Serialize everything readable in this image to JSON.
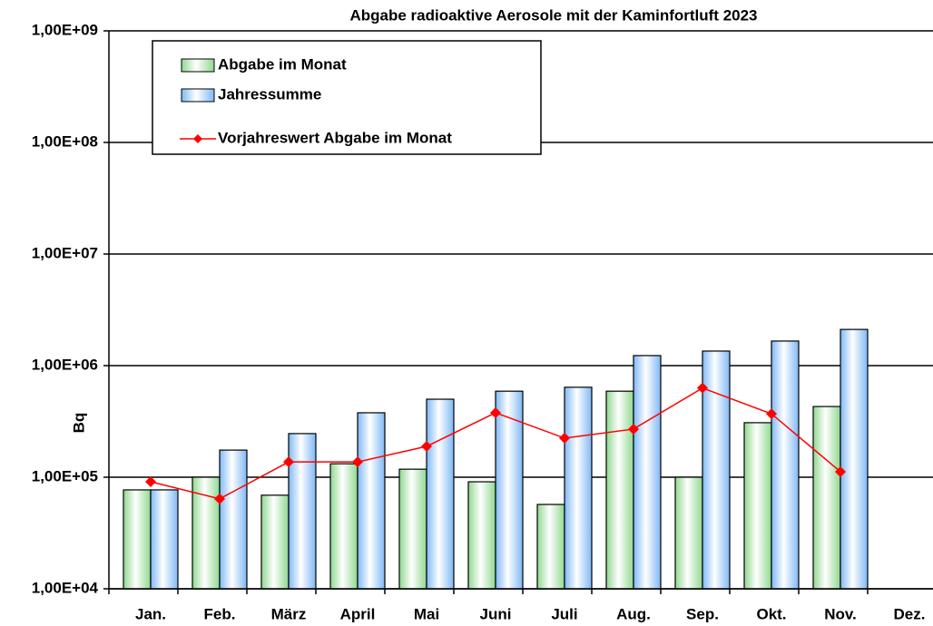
{
  "chart_data": {
    "type": "bar",
    "title": "Abgabe radioaktive Aerosole mit der Kaminfortluft 2023",
    "y_label": "Bq",
    "categories": [
      "Jan.",
      "Feb.",
      "März",
      "April",
      "Mai",
      "Juni",
      "Juli",
      "Aug.",
      "Sep.",
      "Okt.",
      "Nov.",
      "Dez."
    ],
    "series": [
      {
        "name": "Abgabe im Monat",
        "type": "bar",
        "color": "#8fd88f",
        "values": [
          77000,
          100000,
          69000,
          132000,
          118000,
          91000,
          57000,
          590000,
          100000,
          308000,
          430000,
          null
        ]
      },
      {
        "name": "Jahressumme",
        "type": "bar",
        "color": "#7fb8f5",
        "values": [
          77000,
          175000,
          246000,
          378000,
          500000,
          590000,
          640000,
          1230000,
          1350000,
          1660000,
          2110000,
          null
        ]
      },
      {
        "name": "Vorjahreswert Abgabe im Monat",
        "type": "line",
        "color": "#ff0000",
        "values": [
          91000,
          64000,
          137000,
          137000,
          189000,
          378000,
          224000,
          270000,
          630000,
          370000,
          112000,
          null
        ]
      }
    ],
    "log_scale": true,
    "ylim": [
      10000,
      1000000000
    ],
    "yticks": [
      {
        "value": 10000,
        "label": "1,00E+04"
      },
      {
        "value": 100000,
        "label": "1,00E+05"
      },
      {
        "value": 1000000,
        "label": "1,00E+06"
      },
      {
        "value": 10000000,
        "label": "1,00E+07"
      },
      {
        "value": 100000000,
        "label": "1,00E+08"
      },
      {
        "value": 1000000000,
        "label": "1,00E+09"
      }
    ],
    "grid": true,
    "legend_position": "top-left"
  }
}
